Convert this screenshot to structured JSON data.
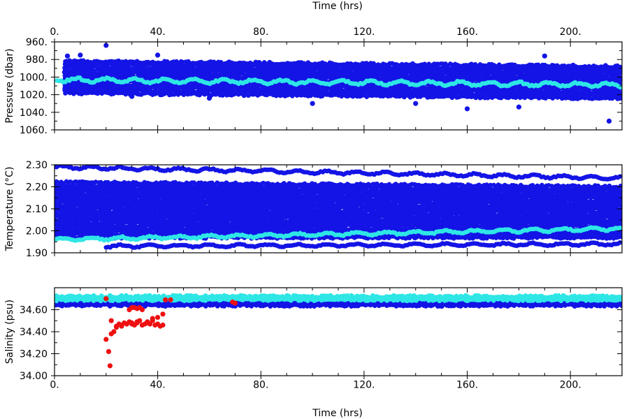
{
  "chart_data": [
    {
      "type": "scatter",
      "top_xlabel": "Time (hrs)",
      "xlabel": "",
      "ylabel": "Pressure (dbar)",
      "xlim": [
        0,
        220
      ],
      "ylim": [
        1060,
        960
      ],
      "y_inverted": true,
      "xticks": [
        0,
        40,
        80,
        120,
        160,
        200
      ],
      "xtick_labels": [
        "0.",
        "40.",
        "80.",
        "120.",
        "160.",
        "200."
      ],
      "yticks": [
        960,
        980,
        1000,
        1020,
        1040,
        1060
      ],
      "ytick_labels": [
        "960.",
        "980.",
        "1000.",
        "1020.",
        "1040.",
        "1060."
      ],
      "grid": false,
      "series": [
        {
          "color": "#1414e6",
          "kind": "band",
          "x_start": 4,
          "x_end": 220,
          "y_top_start": 982,
          "y_top_end": 988,
          "y_bottom_start": 1018,
          "y_bottom_end": 1024
        },
        {
          "color": "#2ee6e6",
          "kind": "trend",
          "x_start": 1,
          "x_end": 220,
          "y_start": 1003,
          "y_end": 1009,
          "amplitude": 2
        },
        {
          "color": "#1414e6",
          "kind": "outliers",
          "x": [
            20,
            5,
            10,
            40,
            160,
            215,
            180,
            100,
            60,
            30,
            190,
            140
          ],
          "y": [
            964,
            976,
            975,
            975,
            1036,
            1050,
            1034,
            1030,
            1024,
            1022,
            976,
            1030
          ]
        }
      ]
    },
    {
      "type": "scatter",
      "xlabel": "",
      "ylabel": "Temperature (°C)",
      "xlim": [
        0,
        220
      ],
      "ylim": [
        1.9,
        2.3
      ],
      "xticks": [
        0,
        40,
        80,
        120,
        160,
        200
      ],
      "yticks": [
        1.9,
        2.0,
        2.1,
        2.2,
        2.3
      ],
      "ytick_labels": [
        "1.90",
        "2.00",
        "2.10",
        "2.20",
        "2.30"
      ],
      "grid": false,
      "series": [
        {
          "color": "#1414e6",
          "kind": "band",
          "x_start": 0,
          "x_end": 220,
          "y_top_start": 2.22,
          "y_top_end": 2.2,
          "y_bottom_start": 1.97,
          "y_bottom_end": 1.97
        },
        {
          "color": "#1414e6",
          "kind": "trend",
          "x_start": 0,
          "x_end": 220,
          "y_start": 2.29,
          "y_end": 2.24,
          "amplitude": 0.006
        },
        {
          "color": "#1414e6",
          "kind": "trend",
          "x_start": 20,
          "x_end": 220,
          "y_start": 1.93,
          "y_end": 1.94,
          "amplitude": 0.005
        },
        {
          "color": "#2ee6e6",
          "kind": "trend",
          "x_start": 0,
          "x_end": 220,
          "y_start": 1.96,
          "y_end": 2.01,
          "amplitude": 0.006
        }
      ]
    },
    {
      "type": "scatter",
      "xlabel": "Time (hrs)",
      "ylabel": "Salinity (psu)",
      "xlim": [
        0,
        220
      ],
      "ylim": [
        34.0,
        34.8
      ],
      "xticks": [
        0,
        40,
        80,
        120,
        160,
        200
      ],
      "xtick_labels": [
        "0.",
        "40.",
        "80.",
        "120.",
        "160.",
        "200."
      ],
      "yticks": [
        34.0,
        34.2,
        34.4,
        34.6
      ],
      "ytick_labels": [
        "34.00",
        "34.20",
        "34.40",
        "34.60"
      ],
      "grid": false,
      "series": [
        {
          "color": "#1414e6",
          "kind": "band",
          "x_start": 0,
          "x_end": 220,
          "y_top_start": 34.68,
          "y_top_end": 34.68,
          "y_bottom_start": 34.64,
          "y_bottom_end": 34.64
        },
        {
          "color": "#2ee6e6",
          "kind": "band",
          "x_start": 0,
          "x_end": 220,
          "y_top_start": 34.72,
          "y_top_end": 34.72,
          "y_bottom_start": 34.69,
          "y_bottom_end": 34.69
        },
        {
          "color": "#ee1010",
          "kind": "points",
          "x": [
            20,
            21,
            21.5,
            22,
            23,
            24,
            25,
            26,
            27,
            28,
            29,
            30,
            31,
            32,
            33,
            34,
            35,
            36,
            37,
            38,
            39,
            40,
            41,
            42,
            22,
            24,
            26,
            28,
            30,
            32,
            34,
            36,
            38,
            40,
            42,
            29,
            30,
            31,
            32,
            33,
            34,
            20,
            43,
            45,
            69,
            70
          ],
          "y": [
            34.33,
            34.22,
            34.09,
            34.5,
            34.4,
            34.45,
            34.47,
            34.46,
            34.48,
            34.47,
            34.49,
            34.47,
            34.46,
            34.48,
            34.5,
            34.46,
            34.47,
            34.49,
            34.47,
            34.52,
            34.46,
            34.47,
            34.45,
            34.56,
            34.38,
            34.44,
            34.45,
            34.47,
            34.48,
            34.49,
            34.46,
            34.48,
            34.5,
            34.53,
            34.46,
            34.6,
            34.62,
            34.62,
            34.61,
            34.62,
            34.6,
            34.7,
            34.69,
            34.69,
            34.67,
            34.66
          ]
        }
      ]
    }
  ]
}
